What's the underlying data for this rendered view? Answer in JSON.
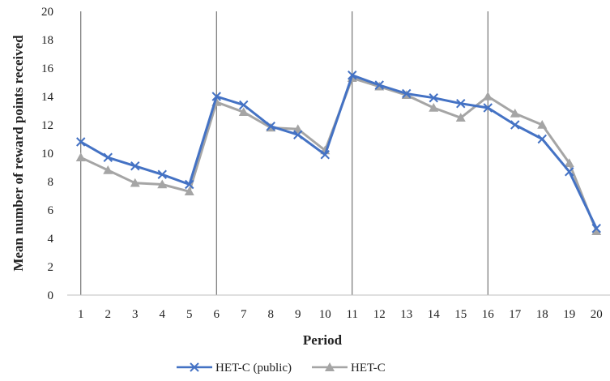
{
  "chart_data": {
    "type": "line",
    "title": "",
    "xlabel": "Period",
    "ylabel": "Mean number of reward points received",
    "x": [
      1,
      2,
      3,
      4,
      5,
      6,
      7,
      8,
      9,
      10,
      11,
      12,
      13,
      14,
      15,
      16,
      17,
      18,
      19,
      20
    ],
    "ylim": [
      0,
      20
    ],
    "yticks": [
      0,
      2,
      4,
      6,
      8,
      10,
      12,
      14,
      16,
      18,
      20
    ],
    "grid": false,
    "legend_position": "bottom",
    "block_separators_at_period": [
      1,
      6,
      11,
      16
    ],
    "series": [
      {
        "name": "HET-C (public)",
        "color": "#4472C4",
        "marker": "x",
        "values": [
          10.8,
          9.7,
          9.1,
          8.5,
          7.8,
          14.0,
          13.4,
          11.9,
          11.3,
          9.9,
          15.5,
          14.8,
          14.2,
          13.9,
          13.5,
          13.2,
          12.0,
          11.0,
          8.7,
          4.7
        ]
      },
      {
        "name": "HET-C",
        "color": "#A5A5A5",
        "marker": "triangle",
        "values": [
          9.7,
          8.8,
          7.9,
          7.8,
          7.3,
          13.6,
          12.9,
          11.8,
          11.7,
          10.2,
          15.3,
          14.7,
          14.1,
          13.2,
          12.5,
          14.0,
          12.8,
          12.0,
          9.3,
          4.5
        ]
      }
    ]
  }
}
